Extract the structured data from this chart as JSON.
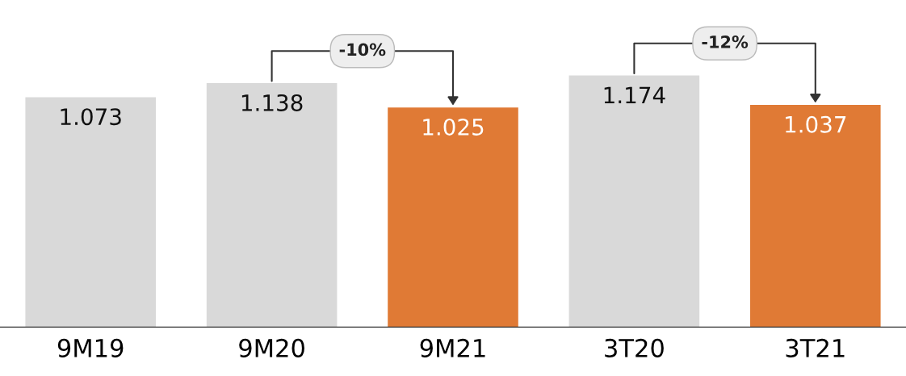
{
  "chart_data": {
    "type": "bar",
    "categories": [
      "9M19",
      "9M20",
      "9M21",
      "3T20",
      "3T21"
    ],
    "values": [
      1.073,
      1.138,
      1.025,
      1.174,
      1.037
    ],
    "colors": [
      "#d9d9d9",
      "#d9d9d9",
      "#e07a35",
      "#d9d9d9",
      "#e07a35"
    ],
    "data_labels": true,
    "grid": false,
    "tick_labels": "x",
    "annotations": [
      "-10%",
      "-12%"
    ]
  }
}
